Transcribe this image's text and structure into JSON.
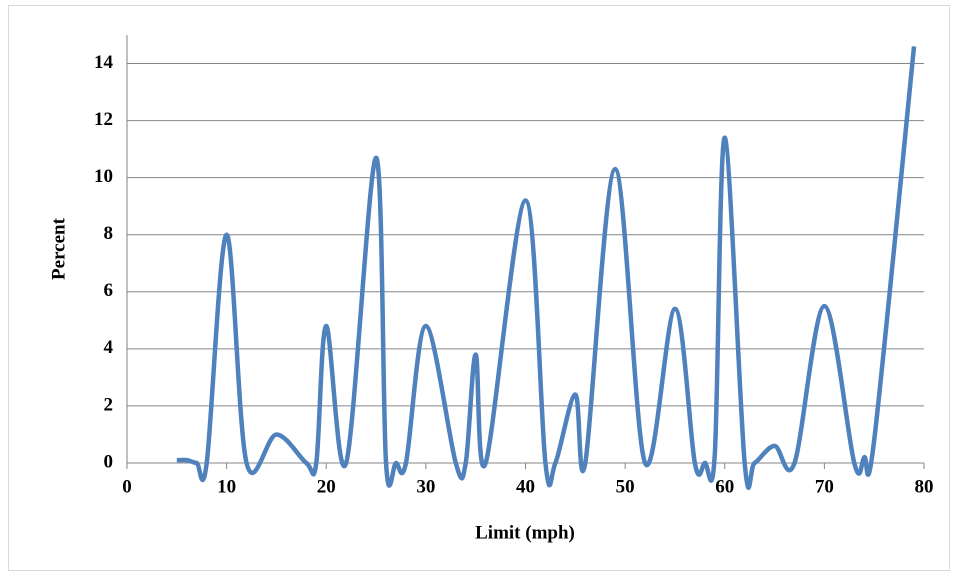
{
  "chart_data": {
    "type": "line",
    "x_label": "Limit (mph)",
    "y_label": "Percent",
    "x": [
      5,
      6,
      7,
      8,
      10,
      12,
      15,
      18,
      19,
      20,
      22,
      25,
      26,
      27,
      28,
      30,
      33,
      34,
      35,
      36,
      40,
      42,
      43,
      45,
      46,
      49,
      52,
      55,
      57,
      58,
      59,
      60,
      62,
      63,
      65,
      67,
      70,
      73,
      74,
      75,
      79
    ],
    "series": [
      {
        "color": "#4f81bd",
        "values": [
          0.1,
          0.1,
          0,
          0,
          8.0,
          0,
          1.0,
          0,
          0,
          4.8,
          0,
          10.7,
          0,
          0,
          0,
          4.8,
          0,
          0,
          3.8,
          0,
          9.2,
          0,
          0,
          2.4,
          0,
          10.3,
          0,
          5.4,
          0,
          0,
          0.3,
          11.4,
          0,
          0,
          0.6,
          0,
          5.5,
          0,
          0.2,
          0.8,
          14.6
        ]
      }
    ],
    "xlim": [
      0,
      80
    ],
    "xticks": [
      0,
      10,
      20,
      30,
      40,
      50,
      60,
      70,
      80
    ],
    "ylim": [
      0,
      15
    ],
    "yticks": [
      0,
      2,
      4,
      6,
      8,
      10,
      12,
      14
    ],
    "grid": true,
    "smooth": true
  }
}
